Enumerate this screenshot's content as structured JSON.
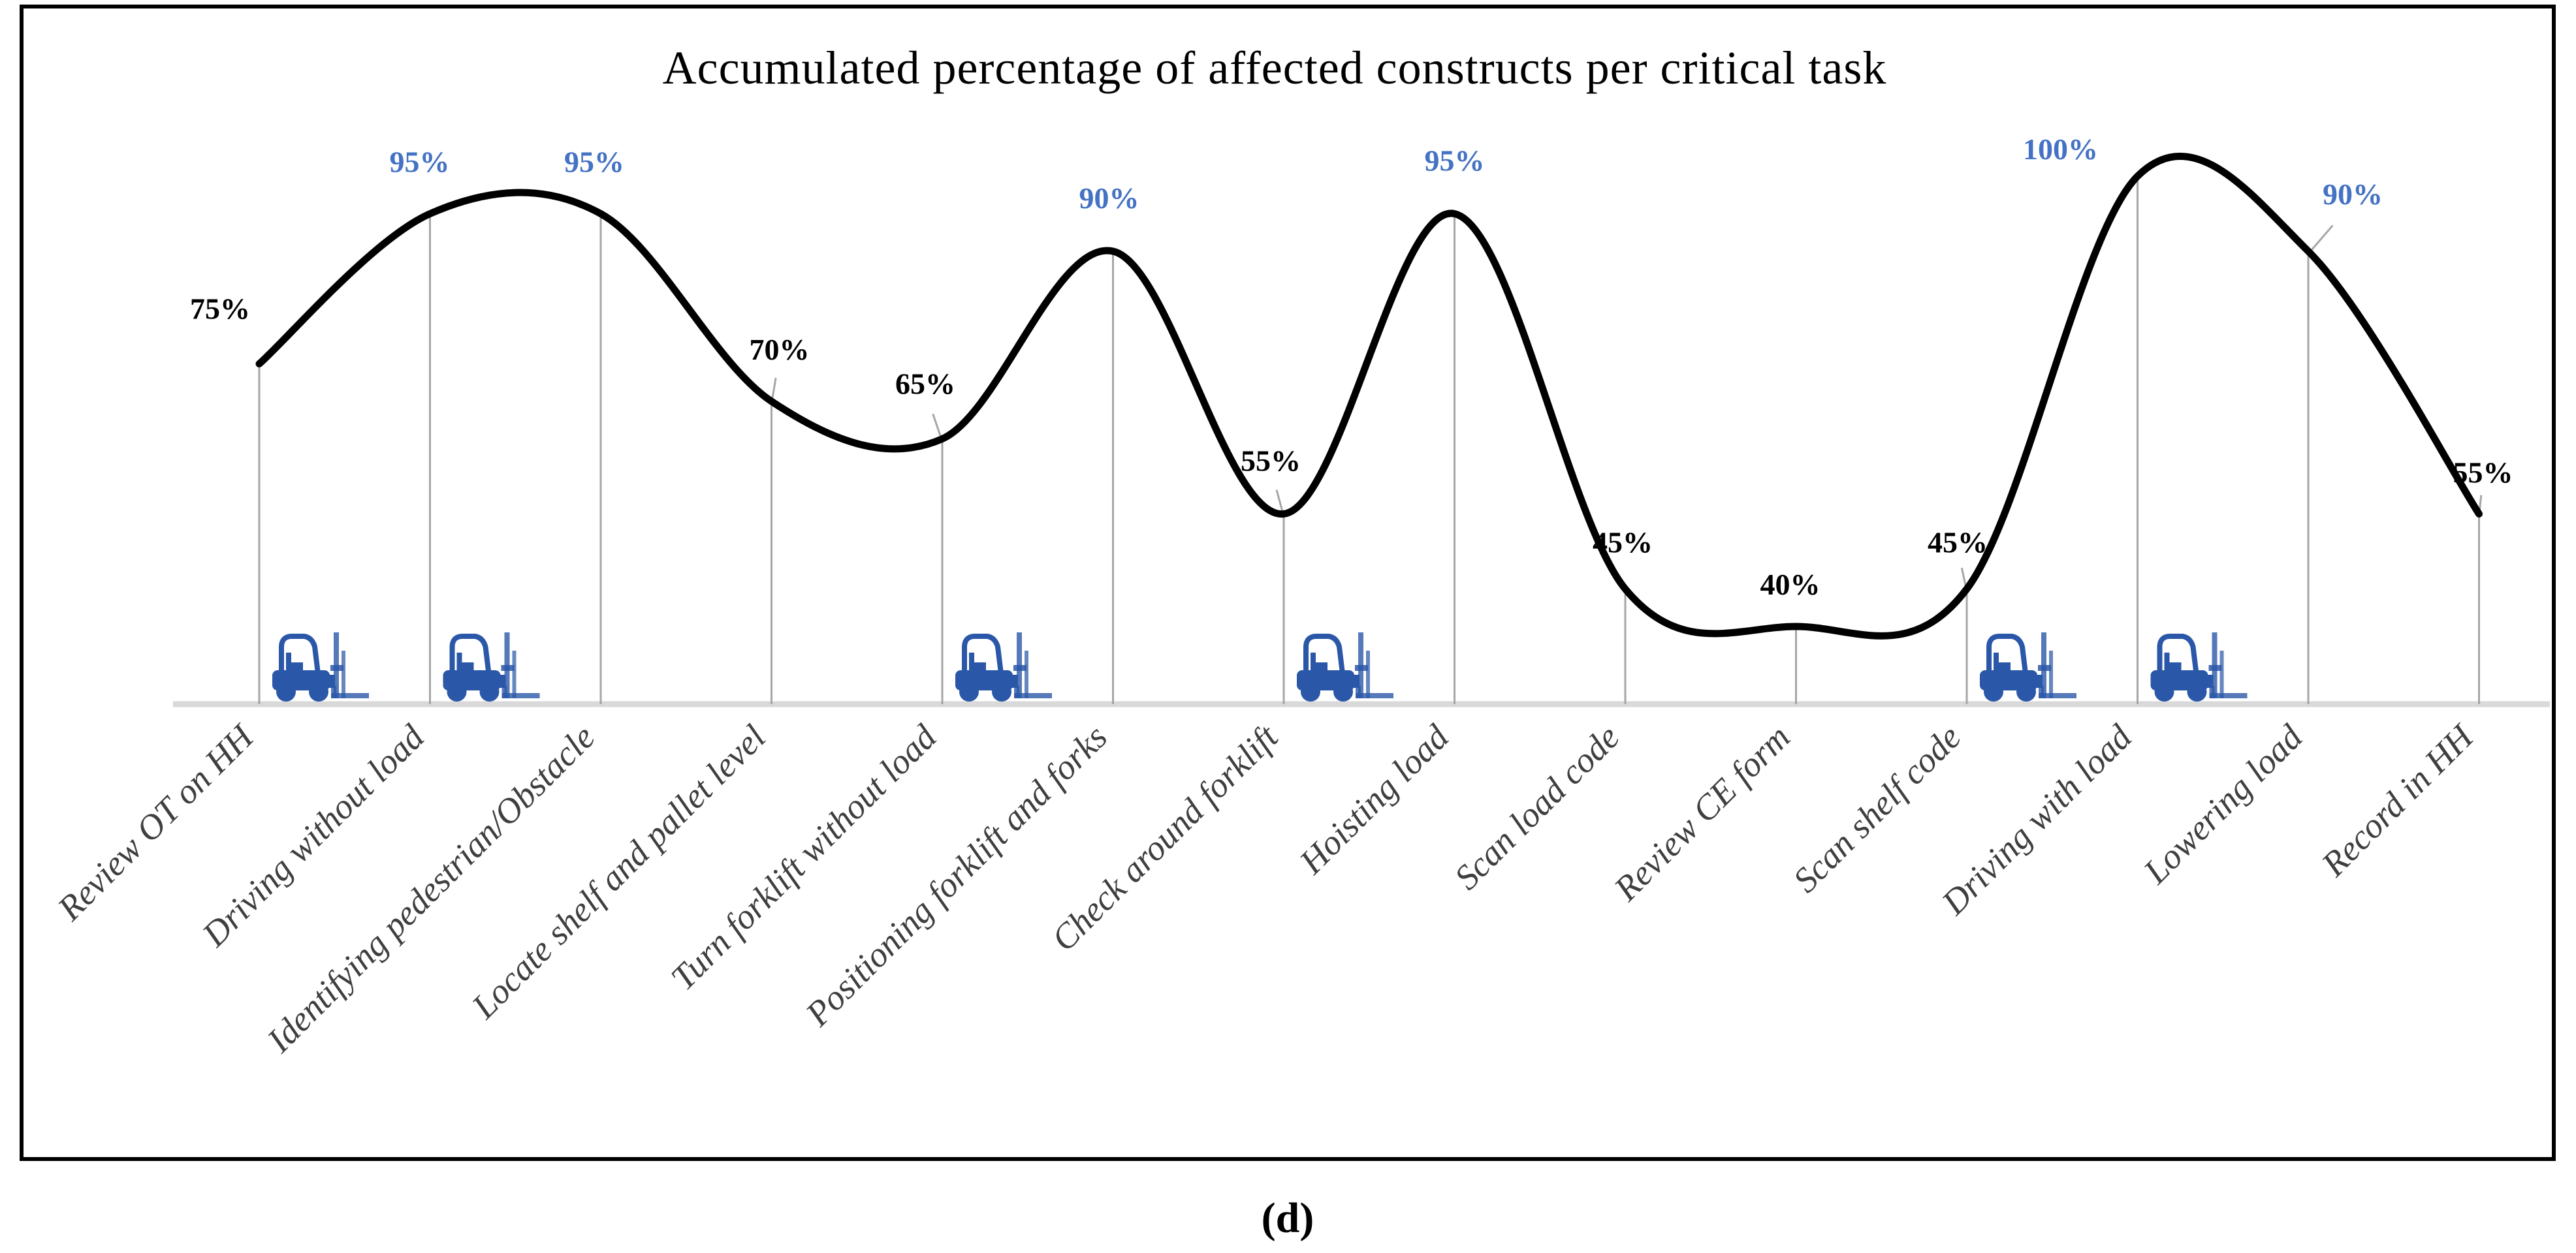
{
  "figure": {
    "title": "Accumulated percentage of affected constructs per critical task",
    "caption": "(d)"
  },
  "colors": {
    "curve": "#000000",
    "highlight_label_blue": "#4472C4",
    "normal_label_black": "#000000",
    "drop_line_gray": "#A6A6A6",
    "baseline_gray": "#D9D9D9",
    "axis_label_gray": "#3F3F3F",
    "forklift_blue": "#2B57A8",
    "border_black": "#000000"
  },
  "icons": {
    "marker": "forklift-icon"
  },
  "chart_data": {
    "type": "line",
    "smoothing": "spline",
    "title": "Accumulated percentage of affected constructs per critical task",
    "xlabel": "",
    "ylabel": "",
    "ylim": [
      30,
      105
    ],
    "grid": false,
    "legend": "none",
    "categories": [
      "Review OT on HH",
      "Driving without load",
      "Identifying pedestrian/Obstacle",
      "Locate shelf and pallet level",
      "Turn forklift without load",
      "Positioning forklift and forks",
      "Check around forklift",
      "Hoisting load",
      "Scan load code",
      "Review CE form",
      "Scan shelf code",
      "Driving with load",
      "Lowering load",
      "Record in HH"
    ],
    "values": [
      75,
      95,
      95,
      70,
      65,
      90,
      55,
      95,
      45,
      40,
      45,
      100,
      90,
      55
    ],
    "point_labels": [
      "75%",
      "95%",
      "95%",
      "70%",
      "65%",
      "90%",
      "55%",
      "95%",
      "45%",
      "40%",
      "45%",
      "100%",
      "90%",
      "55%"
    ],
    "highlighted": [
      false,
      true,
      true,
      false,
      false,
      true,
      false,
      true,
      false,
      false,
      false,
      true,
      true,
      false
    ],
    "forklift_marker_indices": [
      0,
      1,
      4,
      6,
      10,
      11
    ]
  }
}
